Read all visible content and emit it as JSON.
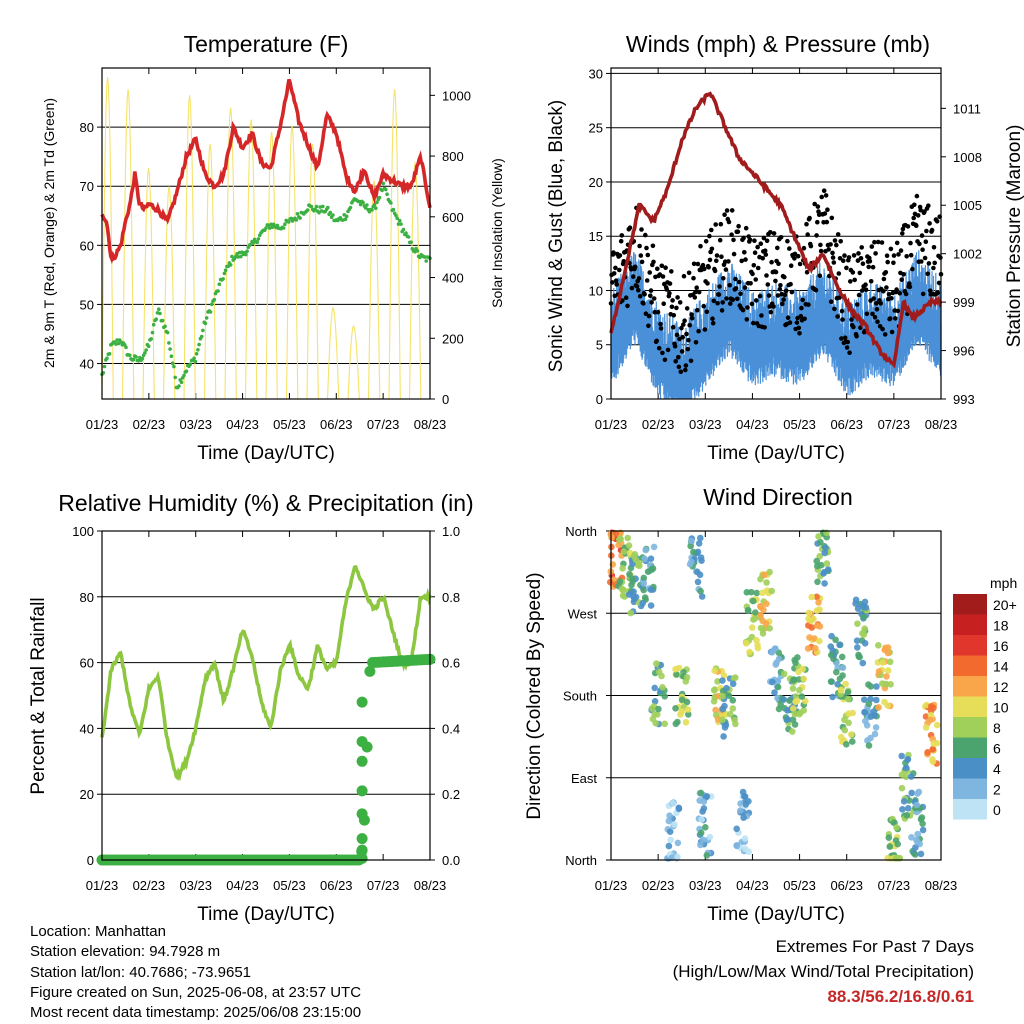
{
  "chart_data": [
    {
      "id": "temperature",
      "type": "line",
      "title": "Temperature (F)",
      "xlabel": "Time (Day/UTC)",
      "ylabel": "2m & 9m T (Red, Orange) & 2m Td (Green)",
      "y2label": "Solar Insolation (Yellow)",
      "x_ticks": [
        "01/23",
        "02/23",
        "03/23",
        "04/23",
        "05/23",
        "06/23",
        "07/23",
        "08/23"
      ],
      "ylim": [
        34,
        90
      ],
      "yticks": [
        40,
        50,
        60,
        70,
        80
      ],
      "y2lim": [
        0,
        1090
      ],
      "y2ticks": [
        0,
        200,
        400,
        600,
        800,
        1000
      ],
      "grid": true,
      "series": [
        {
          "color": "#d62728",
          "x": [
            0,
            0.1,
            0.2,
            0.3,
            0.4,
            0.5,
            0.6,
            0.7,
            0.8,
            0.9,
            1,
            1.2,
            1.4,
            1.6,
            1.8,
            2,
            2.2,
            2.4,
            2.6,
            2.8,
            3,
            3.2,
            3.4,
            3.6,
            3.8,
            4,
            4.2,
            4.4,
            4.6,
            4.8,
            5,
            5.2,
            5.4,
            5.6,
            5.8,
            6,
            6.2,
            6.4,
            6.6,
            6.8,
            7
          ],
          "y": [
            65.5,
            64,
            57.5,
            58.5,
            60,
            64,
            67,
            72,
            67,
            66,
            67,
            66,
            64,
            69,
            75,
            78,
            72,
            70,
            72,
            80,
            76.5,
            79,
            74,
            73,
            80,
            88,
            81,
            77,
            73,
            82,
            79,
            72,
            69,
            73,
            68,
            72,
            71,
            70,
            70,
            75,
            66.5
          ]
        },
        {
          "color": "#3cb043",
          "x": [
            0,
            0.2,
            0.4,
            0.6,
            0.8,
            1,
            1.2,
            1.4,
            1.6,
            1.8,
            2,
            2.2,
            2.4,
            2.6,
            2.8,
            3,
            3.2,
            3.4,
            3.6,
            3.8,
            4,
            4.2,
            4.4,
            4.6,
            4.8,
            5,
            5.2,
            5.4,
            5.6,
            5.8,
            6,
            6.2,
            6.4,
            6.6,
            6.8,
            7
          ],
          "y": [
            38,
            43,
            44,
            41,
            40.5,
            43,
            49,
            45,
            36,
            39,
            41,
            47,
            51,
            55,
            58,
            58.5,
            60,
            62,
            63.5,
            63,
            64,
            65,
            66.5,
            66,
            66,
            64,
            65,
            68,
            66.5,
            66,
            70,
            66,
            63,
            60,
            58,
            57.5
          ]
        },
        {
          "color": "#f6e36a",
          "kind": "insolation",
          "y2_values": [
            1060,
            1020,
            760,
            700,
            1000,
            840,
            960,
            920,
            880,
            900,
            840,
            300,
            240,
            720,
            1020,
            780
          ]
        }
      ]
    },
    {
      "id": "winds",
      "type": "scatter",
      "title": "Winds (mph) & Pressure (mb)",
      "xlabel": "Time (Day/UTC)",
      "ylabel": "Sonic Wind & Gust (Blue, Black)",
      "y2label": "Station Pressure (Maroon)",
      "x_ticks": [
        "01/23",
        "02/23",
        "03/23",
        "04/23",
        "05/23",
        "06/23",
        "07/23",
        "08/23"
      ],
      "ylim": [
        0,
        30.5
      ],
      "yticks": [
        0,
        5,
        10,
        15,
        20,
        25,
        30
      ],
      "y2lim": [
        993,
        1013.5
      ],
      "y2ticks": [
        993,
        996,
        999,
        1002,
        1005,
        1008,
        1011
      ],
      "grid": true,
      "series": [
        {
          "color": "#4a90d9",
          "kind": "wind",
          "x": [
            0,
            0.5,
            1,
            1.5,
            2,
            2.5,
            3,
            3.5,
            4,
            4.5,
            5,
            5.5,
            6,
            6.5,
            7
          ],
          "y": [
            6,
            10,
            5,
            3,
            6,
            9,
            6,
            7,
            6,
            9,
            5,
            7,
            6,
            10,
            7
          ]
        },
        {
          "color": "#000000",
          "kind": "gust",
          "x": [
            0,
            0.5,
            1,
            1.5,
            2,
            2.5,
            3,
            3.5,
            4,
            4.5,
            5,
            5.5,
            6,
            6.5,
            7
          ],
          "y": [
            9,
            14,
            8,
            6,
            10,
            13,
            10,
            11,
            10,
            15,
            8,
            10,
            9,
            14,
            12
          ]
        },
        {
          "color": "#a01c1c",
          "kind": "pressure",
          "x": [
            0,
            0.3,
            0.6,
            0.9,
            1.2,
            1.5,
            1.8,
            2.1,
            2.4,
            2.7,
            3,
            3.3,
            3.6,
            3.9,
            4.2,
            4.5,
            4.8,
            5.1,
            5.4,
            5.7,
            6,
            6.2,
            6.4,
            6.6,
            6.8,
            7
          ],
          "y2": [
            997,
            1001,
            1005,
            1004,
            1006,
            1009,
            1011,
            1012,
            1010,
            1008,
            1007,
            1006,
            1005,
            1003,
            1001,
            1002,
            1000,
            998.5,
            997.5,
            996,
            995,
            999,
            998,
            998.5,
            999,
            999
          ]
        }
      ]
    },
    {
      "id": "humidity",
      "type": "line",
      "title": "Relative Humidity (%) & Precipitation (in)",
      "xlabel": "Time (Day/UTC)",
      "ylabel": "Percent & Total Rainfall",
      "x_ticks": [
        "01/23",
        "02/23",
        "03/23",
        "04/23",
        "05/23",
        "06/23",
        "07/23",
        "08/23"
      ],
      "ylim": [
        0,
        100
      ],
      "yticks": [
        0,
        20,
        40,
        60,
        80,
        100
      ],
      "y2lim": [
        0,
        1.0
      ],
      "y2ticks": [
        "0.0",
        "0.2",
        "0.4",
        "0.6",
        "0.8",
        "1.0"
      ],
      "grid": true,
      "series": [
        {
          "color": "#8dc63f",
          "kind": "rh",
          "x": [
            0,
            0.2,
            0.4,
            0.6,
            0.8,
            1,
            1.2,
            1.4,
            1.6,
            1.8,
            2,
            2.2,
            2.4,
            2.6,
            2.8,
            3,
            3.2,
            3.4,
            3.6,
            3.8,
            4,
            4.2,
            4.4,
            4.6,
            4.8,
            5,
            5.2,
            5.4,
            5.6,
            5.8,
            6,
            6.2,
            6.4,
            6.6,
            6.8,
            7
          ],
          "y": [
            37,
            58,
            63,
            47,
            38,
            52,
            56,
            36,
            25,
            30,
            40,
            55,
            60,
            48,
            58,
            70,
            62,
            48,
            40,
            57,
            66,
            56,
            52,
            65,
            58,
            60,
            78,
            90,
            82,
            76,
            80,
            70,
            60,
            60,
            80,
            80
          ]
        },
        {
          "color": "#3cb043",
          "kind": "precip",
          "x": [
            0,
            5.5,
            5.58,
            5.65,
            5.7,
            5.75,
            7
          ],
          "y2": [
            0,
            0,
            0.05,
            0.3,
            0.56,
            0.6,
            0.61
          ]
        }
      ]
    },
    {
      "id": "wind_direction",
      "type": "scatter",
      "title": "Wind Direction",
      "xlabel": "Time (Day/UTC)",
      "ylabel": "Direction (Colored By Speed)",
      "x_ticks": [
        "01/23",
        "02/23",
        "03/23",
        "04/23",
        "05/23",
        "06/23",
        "07/23",
        "08/23"
      ],
      "y_ticks": [
        "North",
        "East",
        "South",
        "West",
        "North"
      ],
      "grid": true,
      "legend": {
        "title": "mph",
        "labels": [
          "20+",
          "18",
          "16",
          "14",
          "12",
          "10",
          "8",
          "6",
          "4",
          "2",
          "0"
        ],
        "colors": [
          "#a31c1c",
          "#c62020",
          "#e0362b",
          "#f26a2e",
          "#f9a64a",
          "#e6de58",
          "#a0cf5a",
          "#4ba46e",
          "#4a8fc6",
          "#7fb6e0",
          "#bde3f5"
        ]
      },
      "x": [
        0.1,
        0.3,
        0.5,
        0.8,
        1.0,
        1.3,
        1.5,
        1.8,
        2.0,
        2.3,
        2.5,
        2.8,
        3.0,
        3.3,
        3.5,
        3.8,
        4.0,
        4.3,
        4.5,
        4.8,
        5.0,
        5.3,
        5.5,
        5.8,
        6.0,
        6.3,
        6.5,
        6.8
      ],
      "direction_deg": [
        330,
        320,
        300,
        310,
        180,
        30,
        180,
        320,
        40,
        185,
        170,
        40,
        260,
        280,
        200,
        175,
        190,
        260,
        330,
        210,
        160,
        250,
        160,
        200,
        10,
        80,
        40,
        140
      ],
      "speed_mph": [
        14,
        8,
        6,
        4,
        6,
        2,
        8,
        4,
        3,
        10,
        6,
        2,
        8,
        10,
        4,
        6,
        8,
        12,
        6,
        4,
        8,
        6,
        4,
        10,
        8,
        6,
        4,
        12
      ]
    }
  ],
  "info": {
    "location": "Location: Manhattan",
    "elevation": "Station elevation: 94.7928 m",
    "latlon": "Station lat/lon: 40.7686; -73.9651",
    "created": "Figure created on Sun, 2025-06-08, at 23:57 UTC",
    "latest": "Most recent data timestamp: 2025/06/08 23:15:00"
  },
  "extremes": {
    "line1": "Extremes For Past 7 Days",
    "line2": "(High/Low/Max Wind/Total Precipitation)",
    "values": "88.3/56.2/16.8/0.61"
  }
}
